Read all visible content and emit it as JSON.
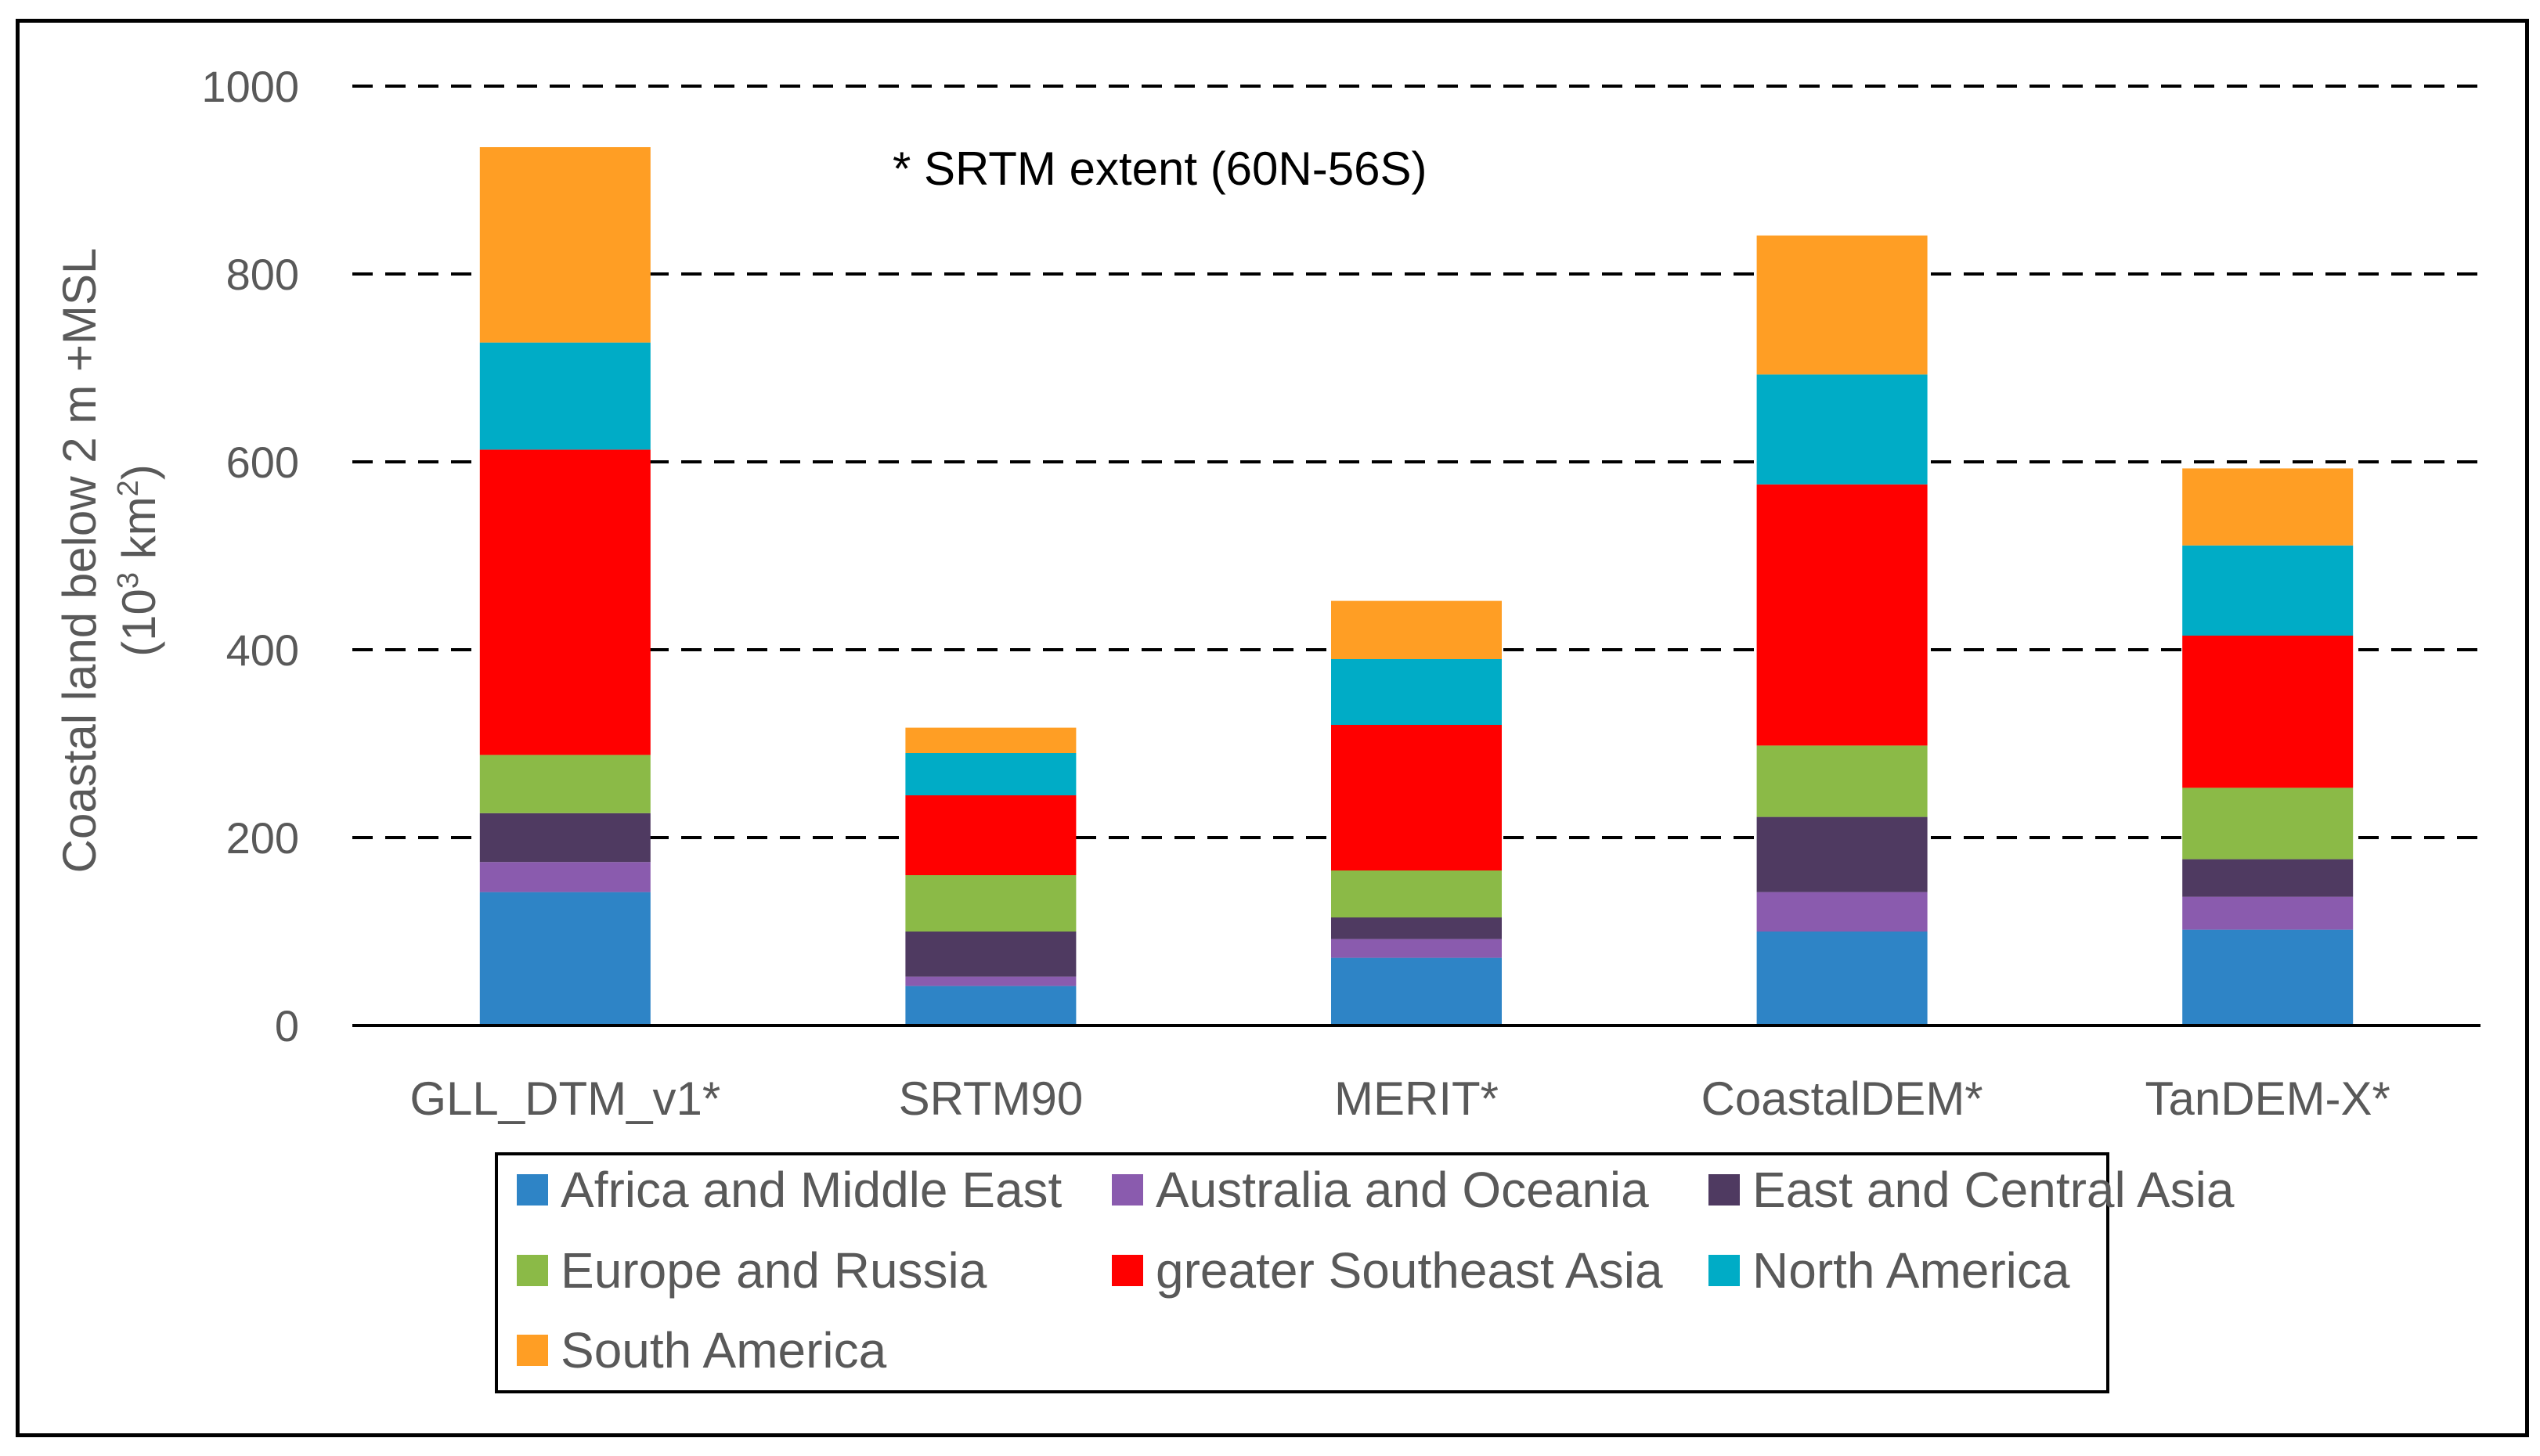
{
  "chart_data": {
    "type": "bar",
    "stacked": true,
    "annotation": "* SRTM extent (60N-56S)",
    "ylabel_line1": "Coastal land below 2 m +MSL",
    "ylabel_line2_prefix": "(10",
    "ylabel_line2_sup1": "3",
    "ylabel_line2_mid": " km",
    "ylabel_line2_sup2": "2",
    "ylabel_line2_suffix": ")",
    "ylim": [
      0,
      1000
    ],
    "yticks": [
      0,
      200,
      400,
      600,
      800,
      1000
    ],
    "grid": "dashed horizontal",
    "legend_position": "bottom",
    "categories": [
      "GLL_DTM_v1*",
      "SRTM90",
      "MERIT*",
      "CoastalDEM*",
      "TanDEM-X*"
    ],
    "series": [
      {
        "name": "Africa and Middle East",
        "color": "#2E84C6",
        "values": [
          142,
          42,
          72,
          100,
          102
        ]
      },
      {
        "name": "Australia and Oceania",
        "color": "#8A5BAE",
        "values": [
          32,
          10,
          20,
          42,
          35
        ]
      },
      {
        "name": "East and Central Asia",
        "color": "#4F3A61",
        "values": [
          52,
          48,
          23,
          80,
          40
        ]
      },
      {
        "name": "Europe and Russia",
        "color": "#8BBA47",
        "values": [
          62,
          60,
          50,
          76,
          76
        ]
      },
      {
        "name": "greater Southeast Asia",
        "color": "#FF0000",
        "values": [
          325,
          85,
          155,
          278,
          162
        ]
      },
      {
        "name": "North America",
        "color": "#00ACC6",
        "values": [
          114,
          45,
          70,
          117,
          96
        ]
      },
      {
        "name": "South America",
        "color": "#FF9E24",
        "values": [
          208,
          27,
          62,
          148,
          82
        ]
      }
    ]
  }
}
